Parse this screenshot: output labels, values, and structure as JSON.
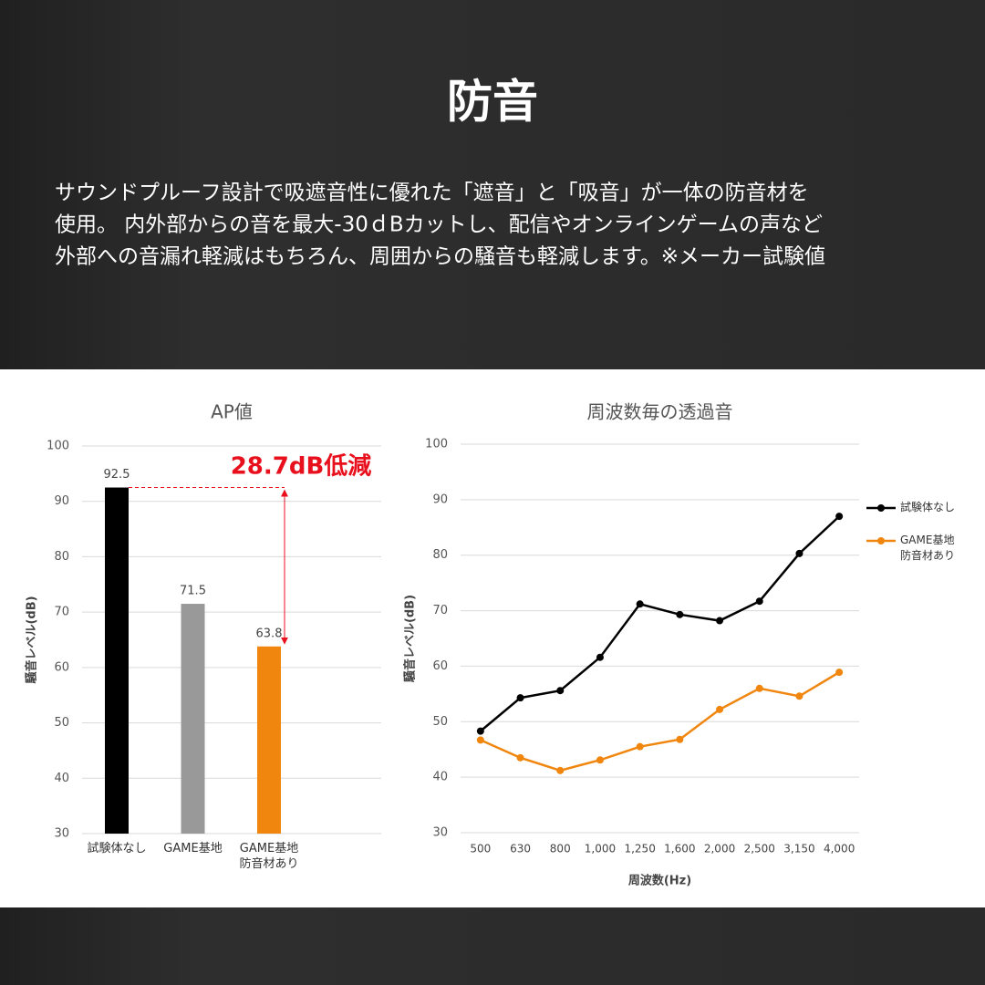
{
  "header": {
    "title": "防音",
    "description": [
      "サウンドプルーフ設計で吸遮音性に優れた「遮音」と「吸音」が一体の防音材を",
      "使用。 内外部からの音を最大-30ｄBカットし、配信やオンラインゲームの声など",
      "外部への音漏れ軽減はもちろん、周囲からの騒音も軽減します。※メーカー試験値"
    ]
  },
  "chart_data": [
    {
      "type": "bar",
      "title": "AP値",
      "y_label": "騒音レベル(dB)",
      "categories": [
        "試験体なし",
        "GAME基地",
        "GAME基地\n防音材あり"
      ],
      "values": [
        92.5,
        71.5,
        63.8
      ],
      "colors": [
        "#000000",
        "#999999",
        "#f0860e"
      ],
      "annotation": "28.7dB低減",
      "annotation_color": "#e8101c",
      "ylim": [
        30,
        100
      ],
      "yticks": [
        30,
        40,
        50,
        60,
        70,
        80,
        90,
        100
      ],
      "grid": true
    },
    {
      "type": "line",
      "title": "周波数毎の透過音",
      "x_label": "周波数(Hz)",
      "y_label": "騒音レベル(dB)",
      "categories": [
        "500",
        "630",
        "800",
        "1,000",
        "1,250",
        "1,600",
        "2,000",
        "2,500",
        "3,150",
        "4,000"
      ],
      "series": [
        {
          "name": "試験体なし",
          "color": "#000000",
          "values": [
            48.3,
            54.3,
            55.6,
            61.6,
            71.2,
            69.3,
            68.2,
            71.7,
            80.3,
            87.0
          ]
        },
        {
          "name": "GAME基地\n防音材あり",
          "color": "#f0860e",
          "values": [
            46.7,
            43.5,
            41.2,
            43.1,
            45.5,
            46.8,
            52.2,
            56.0,
            54.6,
            58.9
          ]
        }
      ],
      "ylim": [
        30,
        100
      ],
      "yticks": [
        30,
        40,
        50,
        60,
        70,
        80,
        90,
        100
      ],
      "grid": true,
      "legend": "right"
    }
  ]
}
